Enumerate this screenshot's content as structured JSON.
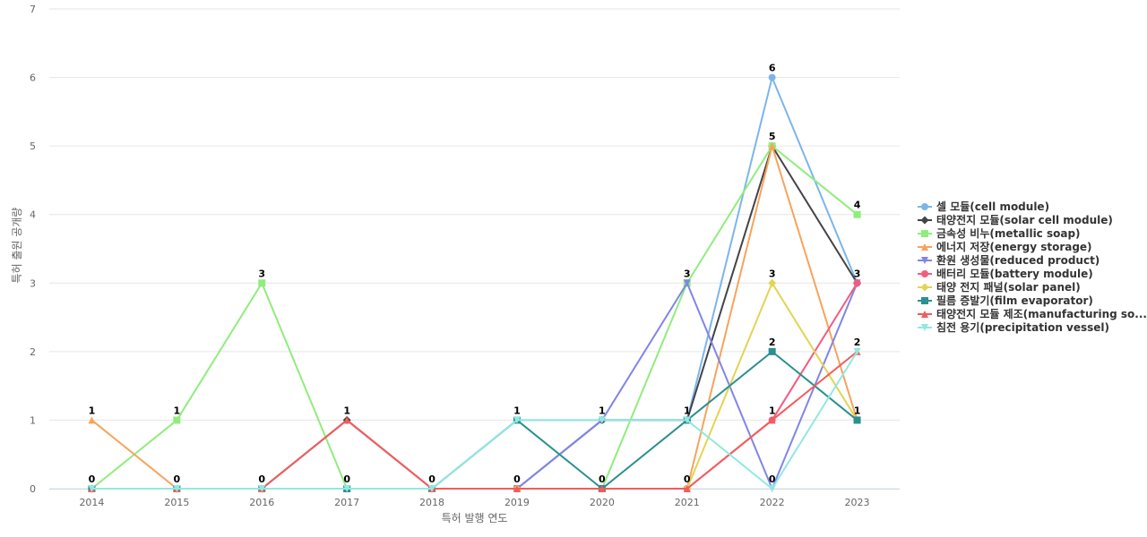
{
  "chart_data": {
    "type": "line",
    "title": "",
    "xlabel": "특허 발행 연도",
    "ylabel": "특허 출원 공개량",
    "categories": [
      "2014",
      "2015",
      "2016",
      "2017",
      "2018",
      "2019",
      "2020",
      "2021",
      "2022",
      "2023"
    ],
    "ylim": [
      0,
      7
    ],
    "yticks": [
      "0",
      "1",
      "2",
      "3",
      "4",
      "5",
      "6",
      "7"
    ],
    "grid": true,
    "legend_position": "right",
    "series": [
      {
        "name": "셀 모듈(cell module)",
        "color": "#7cb5ec",
        "marker": "circle",
        "values": [
          0,
          0,
          0,
          0,
          0,
          1,
          1,
          1,
          6,
          3
        ]
      },
      {
        "name": "태양전지 모듈(solar cell module)",
        "color": "#434348",
        "marker": "diamond",
        "values": [
          0,
          0,
          0,
          1,
          0,
          0,
          1,
          1,
          5,
          3
        ]
      },
      {
        "name": "금속성 비누(metallic soap)",
        "color": "#90ed7d",
        "marker": "square",
        "values": [
          0,
          1,
          3,
          0,
          0,
          0,
          0,
          3,
          5,
          4
        ]
      },
      {
        "name": "에너지 저장(energy storage)",
        "color": "#f7a35c",
        "marker": "triangle",
        "values": [
          1,
          0,
          0,
          0,
          0,
          0,
          0,
          0,
          5,
          1
        ]
      },
      {
        "name": "환원 생성물(reduced product)",
        "color": "#8085e9",
        "marker": "triangle-down",
        "values": [
          0,
          0,
          0,
          0,
          0,
          0,
          1,
          3,
          0,
          3
        ]
      },
      {
        "name": "배터리 모듈(battery module)",
        "color": "#f15c80",
        "marker": "circle",
        "values": [
          0,
          0,
          0,
          0,
          0,
          0,
          0,
          0,
          1,
          3
        ]
      },
      {
        "name": "태양 전지 패널(solar panel)",
        "color": "#e4d354",
        "marker": "diamond",
        "values": [
          0,
          0,
          0,
          0,
          0,
          0,
          0,
          0,
          3,
          1
        ]
      },
      {
        "name": "필름 증발기(film evaporator)",
        "color": "#2b908f",
        "marker": "square",
        "values": [
          0,
          0,
          0,
          0,
          0,
          1,
          0,
          1,
          2,
          1
        ]
      },
      {
        "name": "태양전지 모듈 제조(manufacturing so...",
        "color": "#f45b5b",
        "marker": "triangle",
        "values": [
          0,
          0,
          0,
          1,
          0,
          0,
          0,
          0,
          1,
          2
        ]
      },
      {
        "name": "침전 용기(precipitation vessel)",
        "color": "#91e8e1",
        "marker": "triangle-down",
        "values": [
          0,
          0,
          0,
          0,
          0,
          1,
          1,
          1,
          0,
          2
        ]
      }
    ],
    "data_labels": [
      {
        "category": "2014",
        "series": 3,
        "text": "1"
      },
      {
        "category": "2014",
        "series": 2,
        "text": "0"
      },
      {
        "category": "2015",
        "series": 2,
        "text": "1"
      },
      {
        "category": "2015",
        "series": 3,
        "text": "0"
      },
      {
        "category": "2016",
        "series": 2,
        "text": "3"
      },
      {
        "category": "2016",
        "series": 0,
        "text": "0"
      },
      {
        "category": "2017",
        "series": 1,
        "text": "1"
      },
      {
        "category": "2017",
        "series": 0,
        "text": "0"
      },
      {
        "category": "2018",
        "series": 0,
        "text": "0"
      },
      {
        "category": "2019",
        "series": 0,
        "text": "1"
      },
      {
        "category": "2019",
        "series": 1,
        "text": "0"
      },
      {
        "category": "2020",
        "series": 0,
        "text": "1"
      },
      {
        "category": "2020",
        "series": 2,
        "text": "0"
      },
      {
        "category": "2021",
        "series": 2,
        "text": "3"
      },
      {
        "category": "2021",
        "series": 0,
        "text": "1"
      },
      {
        "category": "2021",
        "series": 3,
        "text": "0"
      },
      {
        "category": "2022",
        "series": 0,
        "text": "6"
      },
      {
        "category": "2022",
        "series": 1,
        "text": "5"
      },
      {
        "category": "2022",
        "series": 6,
        "text": "3"
      },
      {
        "category": "2022",
        "series": 7,
        "text": "2"
      },
      {
        "category": "2022",
        "series": 5,
        "text": "1"
      },
      {
        "category": "2022",
        "series": 4,
        "text": "0"
      },
      {
        "category": "2023",
        "series": 2,
        "text": "4"
      },
      {
        "category": "2023",
        "series": 0,
        "text": "3"
      },
      {
        "category": "2023",
        "series": 8,
        "text": "2"
      },
      {
        "category": "2023",
        "series": 3,
        "text": "1"
      }
    ]
  }
}
